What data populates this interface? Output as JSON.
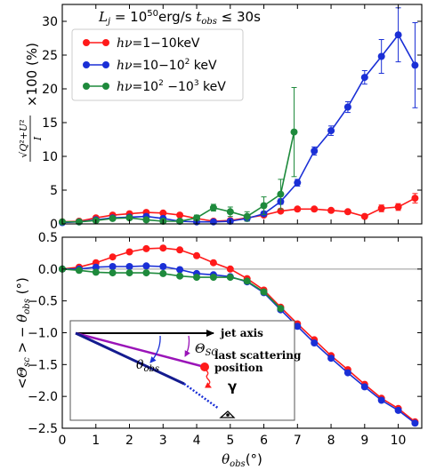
{
  "chart_data": [
    {
      "type": "line",
      "panel": "top",
      "annotation": "L_j = 10^50 erg/s    t_obs ≤ 30s",
      "ylabel": "√(Q²+U²)/I ×100 (%)",
      "xlabel": "",
      "xlim": [
        0,
        10.7
      ],
      "ylim": [
        0,
        32.5
      ],
      "yticks": [
        0,
        5,
        10,
        15,
        20,
        25,
        30
      ],
      "grid": false,
      "legend": "top-left",
      "series": [
        {
          "name": "hν=1−10keV",
          "color": "#ff1a1a",
          "x": [
            0,
            0.5,
            1,
            1.5,
            2,
            2.5,
            3,
            3.5,
            4,
            4.5,
            5,
            5.5,
            6,
            6.5,
            7,
            7.5,
            8,
            8.5,
            9,
            9.5,
            10,
            10.5
          ],
          "y": [
            0.3,
            0.4,
            0.9,
            1.3,
            1.5,
            1.7,
            1.6,
            1.3,
            0.8,
            0.4,
            0.5,
            0.9,
            1.3,
            1.9,
            2.2,
            2.2,
            2.0,
            1.8,
            1.1,
            2.3,
            2.5,
            3.8
          ],
          "err": [
            0.2,
            0.2,
            0.2,
            0.2,
            0.2,
            0.2,
            0.2,
            0.2,
            0.2,
            0.2,
            0.2,
            0.2,
            0.2,
            0.2,
            0.3,
            0.3,
            0.3,
            0.3,
            0.3,
            0.5,
            0.5,
            0.7
          ]
        },
        {
          "name": "hν=10−10² keV",
          "color": "#1a2fd6",
          "x": [
            0,
            0.5,
            1,
            1.5,
            2,
            2.5,
            3,
            3.5,
            4,
            4.5,
            5,
            5.5,
            6,
            6.5,
            7,
            7.5,
            8,
            8.5,
            9,
            9.5,
            10,
            10.5
          ],
          "y": [
            0.2,
            0.3,
            0.6,
            0.9,
            1.0,
            1.1,
            0.8,
            0.4,
            0.3,
            0.3,
            0.4,
            0.8,
            1.5,
            3.3,
            6.1,
            10.8,
            13.8,
            17.3,
            21.7,
            24.8,
            28.0,
            23.5
          ],
          "err": [
            0.2,
            0.2,
            0.2,
            0.2,
            0.2,
            0.2,
            0.2,
            0.2,
            0.2,
            0.2,
            0.2,
            0.3,
            0.3,
            0.4,
            0.5,
            0.6,
            0.7,
            0.8,
            1.0,
            2.5,
            4.0,
            6.3
          ]
        },
        {
          "name": "hν=10²−10³ keV",
          "color": "#1e8a3c",
          "x": [
            0,
            0.5,
            1,
            1.5,
            2,
            2.5,
            3,
            3.5,
            4,
            4.5,
            5,
            5.5,
            6,
            6.5,
            6.9
          ],
          "y": [
            0.3,
            0.3,
            0.5,
            0.8,
            0.9,
            0.6,
            0.4,
            0.4,
            0.9,
            2.4,
            1.8,
            1.1,
            2.7,
            4.4,
            13.6
          ],
          "err": [
            0.2,
            0.2,
            0.2,
            0.2,
            0.3,
            0.3,
            0.3,
            0.3,
            0.4,
            0.5,
            0.7,
            0.7,
            1.3,
            2.2,
            6.6
          ]
        }
      ]
    },
    {
      "type": "line",
      "panel": "bottom",
      "xlabel": "θobs(°)",
      "ylabel": "<Θsc> − θobs (°)",
      "xlim": [
        0,
        10.7
      ],
      "ylim": [
        -2.5,
        0.5
      ],
      "xticks": [
        0,
        1,
        2,
        3,
        4,
        5,
        6,
        7,
        8,
        9,
        10
      ],
      "yticks": [
        -2.5,
        -2.0,
        -1.5,
        -1.0,
        -0.5,
        0.0,
        0.5
      ],
      "hline": 0,
      "grid": false,
      "series": [
        {
          "name": "hν=1−10keV",
          "color": "#ff1a1a",
          "x": [
            0,
            0.5,
            1,
            1.5,
            2,
            2.5,
            3,
            3.5,
            4,
            4.5,
            5,
            5.5,
            6,
            6.5,
            7,
            7.5,
            8,
            8.5,
            9,
            9.5,
            10,
            10.5
          ],
          "y": [
            0.0,
            0.03,
            0.1,
            0.19,
            0.27,
            0.32,
            0.33,
            0.3,
            0.21,
            0.1,
            0.0,
            -0.15,
            -0.33,
            -0.6,
            -0.86,
            -1.11,
            -1.36,
            -1.58,
            -1.81,
            -2.03,
            -2.19,
            -2.4
          ]
        },
        {
          "name": "hν=10−10² keV",
          "color": "#1a2fd6",
          "x": [
            0,
            0.5,
            1,
            1.5,
            2,
            2.5,
            3,
            3.5,
            4,
            4.5,
            5,
            5.5,
            6,
            6.5,
            7,
            7.5,
            8,
            8.5,
            9,
            9.5,
            10,
            10.5
          ],
          "y": [
            0.0,
            0.0,
            0.03,
            0.04,
            0.04,
            0.05,
            0.04,
            -0.01,
            -0.07,
            -0.09,
            -0.12,
            -0.2,
            -0.37,
            -0.64,
            -0.9,
            -1.16,
            -1.4,
            -1.63,
            -1.85,
            -2.06,
            -2.22,
            -2.42
          ]
        },
        {
          "name": "hν=10²−10³ keV",
          "color": "#1e8a3c",
          "x": [
            0,
            0.5,
            1,
            1.5,
            2,
            2.5,
            3,
            3.5,
            4,
            4.5,
            5,
            5.5,
            6,
            6.5
          ],
          "y": [
            0.0,
            -0.02,
            -0.05,
            -0.06,
            -0.06,
            -0.06,
            -0.07,
            -0.11,
            -0.13,
            -0.13,
            -0.13,
            -0.19,
            -0.36,
            -0.62
          ]
        }
      ],
      "inset": {
        "jet_axis_label": "jet axis",
        "theta_sc_label": "Θsc",
        "theta_obs_label": "θobs",
        "scatter_label_line1": "last scattering",
        "scatter_label_line2": "position",
        "photon_label": "γ"
      }
    }
  ]
}
